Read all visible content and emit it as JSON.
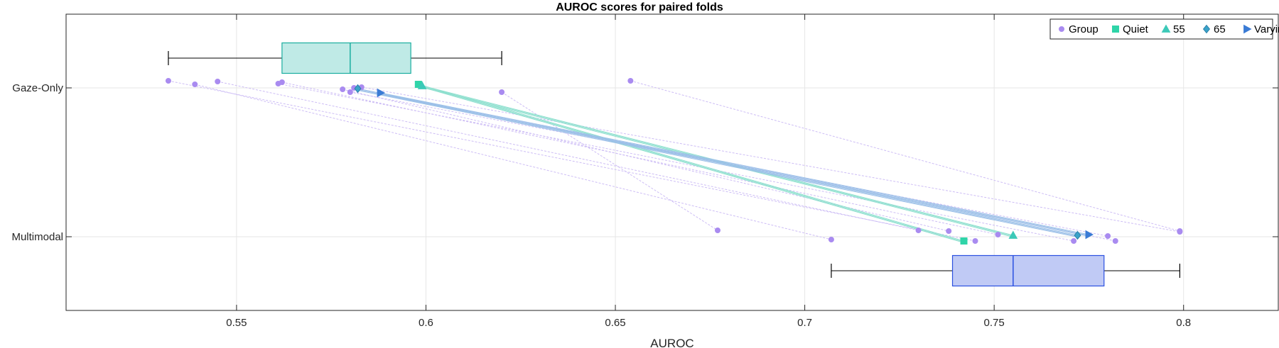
{
  "chart_data": {
    "type": "box-paired-scatter",
    "title": "AUROC scores for paired folds",
    "xlabel": "AUROC",
    "ylabel": "",
    "xlim": [
      0.505,
      0.825
    ],
    "x_ticks": [
      0.55,
      0.6,
      0.65,
      0.7,
      0.75,
      0.8
    ],
    "x_tick_labels": [
      "0.55",
      "0.6",
      "0.65",
      "0.7",
      "0.75",
      "0.8"
    ],
    "categories": [
      "Gaze-Only",
      "Multimodal"
    ],
    "grid": true,
    "legend_position": "top-right",
    "legend": [
      "Group",
      "Quiet",
      "55",
      "65",
      "Varying"
    ],
    "colors": {
      "gaze_box_fill": "#bfeae6",
      "gaze_box_edge": "#1aae9f",
      "multi_box_fill": "#c0caf5",
      "multi_box_edge": "#2b50e0",
      "whisker": "#000000",
      "group": "#a98bf0",
      "quiet": "#2fd4a8",
      "c55": "#3cc9b8",
      "c65": "#3aa3c9",
      "varying": "#3a7bd5",
      "group_line": "#cdbdf5"
    },
    "boxes": [
      {
        "category": "Gaze-Only",
        "min": 0.532,
        "q1": 0.562,
        "median": 0.58,
        "q3": 0.596,
        "max": 0.62
      },
      {
        "category": "Multimodal",
        "min": 0.707,
        "q1": 0.739,
        "median": 0.755,
        "q3": 0.779,
        "max": 0.799
      }
    ],
    "series": [
      {
        "name": "Group",
        "marker": "circle",
        "gaze": [
          0.532,
          0.539,
          0.545,
          0.561,
          0.562,
          0.578,
          0.58,
          0.581,
          0.583,
          0.62,
          0.654
        ],
        "multimodal": [
          0.745,
          0.707,
          0.73,
          0.771,
          0.751,
          0.738,
          0.78,
          0.782,
          0.799,
          0.677,
          0.799
        ]
      },
      {
        "name": "Quiet",
        "marker": "square",
        "gaze": [
          0.598
        ],
        "multimodal": [
          0.742
        ]
      },
      {
        "name": "55",
        "marker": "triangle",
        "gaze": [
          0.599
        ],
        "multimodal": [
          0.755
        ]
      },
      {
        "name": "65",
        "marker": "diamond",
        "gaze": [
          0.582
        ],
        "multimodal": [
          0.772
        ]
      },
      {
        "name": "Varying",
        "marker": "triangle-right",
        "gaze": [
          0.588
        ],
        "multimodal": [
          0.775
        ]
      }
    ]
  }
}
